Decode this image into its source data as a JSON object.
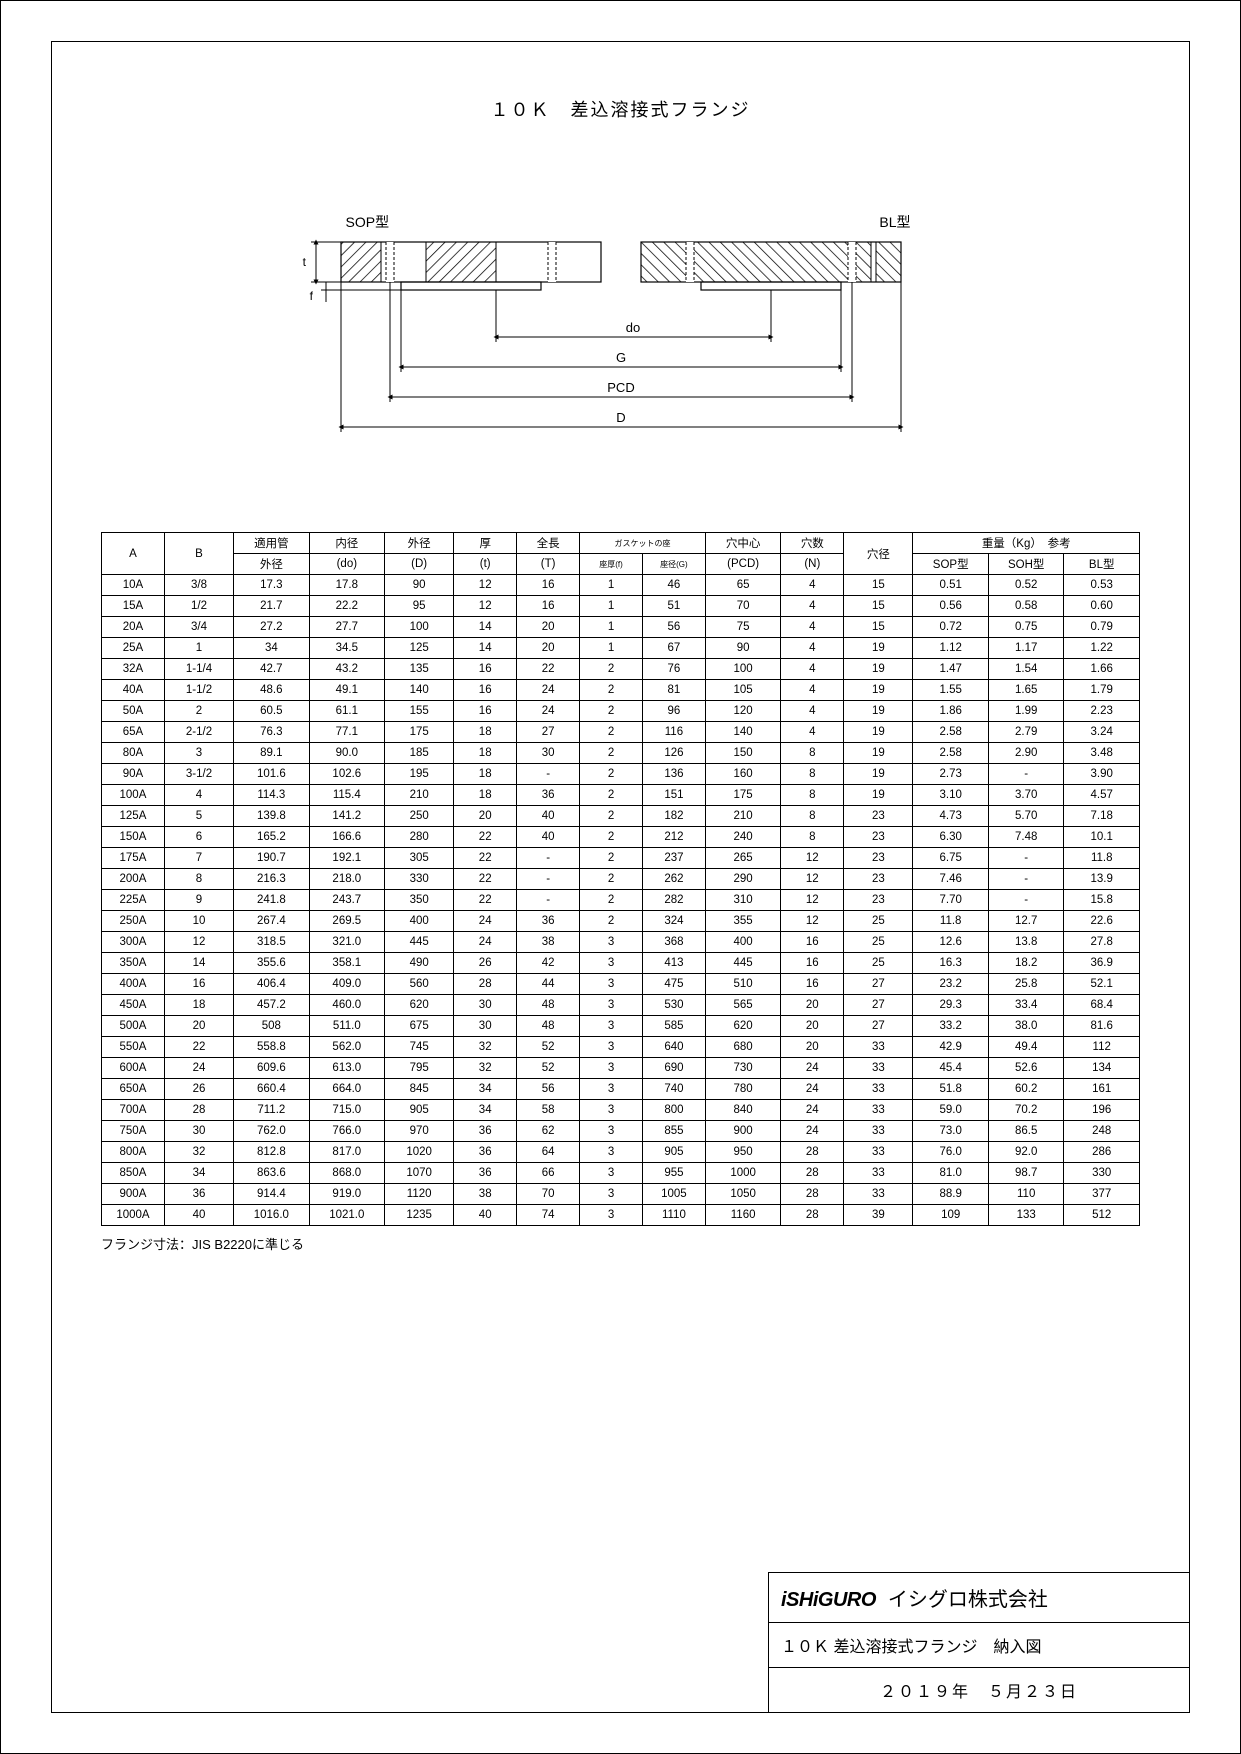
{
  "title": "１０Ｋ　差込溶接式フランジ",
  "diagram": {
    "sop_label": "SOP型",
    "bl_label": "BL型",
    "dim_t": "t",
    "dim_f": "f",
    "dim_do": "do",
    "dim_G": "G",
    "dim_PCD": "PCD",
    "dim_D": "D"
  },
  "table": {
    "headers": {
      "A": "A",
      "B": "B",
      "pipe_od": "適用管",
      "pipe_od_sub": "外径",
      "id": "内径",
      "id_sub": "(do)",
      "od": "外径",
      "od_sub": "(D)",
      "thick": "厚",
      "thick_sub": "(t)",
      "length": "全長",
      "length_sub": "(T)",
      "gasket": "ガスケットの座",
      "seat_f": "座厚(f)",
      "seat_g": "座径(G)",
      "pcd": "穴中心",
      "pcd_sub": "(PCD)",
      "holes": "穴数",
      "holes_sub": "(N)",
      "hole_d": "穴径",
      "weight": "重量（Kg）　参考",
      "sop": "SOP型",
      "soh": "SOH型",
      "bl": "BL型"
    },
    "rows": [
      [
        "10A",
        "3/8",
        "17.3",
        "17.8",
        "90",
        "12",
        "16",
        "1",
        "46",
        "65",
        "4",
        "15",
        "0.51",
        "0.52",
        "0.53"
      ],
      [
        "15A",
        "1/2",
        "21.7",
        "22.2",
        "95",
        "12",
        "16",
        "1",
        "51",
        "70",
        "4",
        "15",
        "0.56",
        "0.58",
        "0.60"
      ],
      [
        "20A",
        "3/4",
        "27.2",
        "27.7",
        "100",
        "14",
        "20",
        "1",
        "56",
        "75",
        "4",
        "15",
        "0.72",
        "0.75",
        "0.79"
      ],
      [
        "25A",
        "1",
        "34",
        "34.5",
        "125",
        "14",
        "20",
        "1",
        "67",
        "90",
        "4",
        "19",
        "1.12",
        "1.17",
        "1.22"
      ],
      [
        "32A",
        "1-1/4",
        "42.7",
        "43.2",
        "135",
        "16",
        "22",
        "2",
        "76",
        "100",
        "4",
        "19",
        "1.47",
        "1.54",
        "1.66"
      ],
      [
        "40A",
        "1-1/2",
        "48.6",
        "49.1",
        "140",
        "16",
        "24",
        "2",
        "81",
        "105",
        "4",
        "19",
        "1.55",
        "1.65",
        "1.79"
      ],
      [
        "50A",
        "2",
        "60.5",
        "61.1",
        "155",
        "16",
        "24",
        "2",
        "96",
        "120",
        "4",
        "19",
        "1.86",
        "1.99",
        "2.23"
      ],
      [
        "65A",
        "2-1/2",
        "76.3",
        "77.1",
        "175",
        "18",
        "27",
        "2",
        "116",
        "140",
        "4",
        "19",
        "2.58",
        "2.79",
        "3.24"
      ],
      [
        "80A",
        "3",
        "89.1",
        "90.0",
        "185",
        "18",
        "30",
        "2",
        "126",
        "150",
        "8",
        "19",
        "2.58",
        "2.90",
        "3.48"
      ],
      [
        "90A",
        "3-1/2",
        "101.6",
        "102.6",
        "195",
        "18",
        "-",
        "2",
        "136",
        "160",
        "8",
        "19",
        "2.73",
        "-",
        "3.90"
      ],
      [
        "100A",
        "4",
        "114.3",
        "115.4",
        "210",
        "18",
        "36",
        "2",
        "151",
        "175",
        "8",
        "19",
        "3.10",
        "3.70",
        "4.57"
      ],
      [
        "125A",
        "5",
        "139.8",
        "141.2",
        "250",
        "20",
        "40",
        "2",
        "182",
        "210",
        "8",
        "23",
        "4.73",
        "5.70",
        "7.18"
      ],
      [
        "150A",
        "6",
        "165.2",
        "166.6",
        "280",
        "22",
        "40",
        "2",
        "212",
        "240",
        "8",
        "23",
        "6.30",
        "7.48",
        "10.1"
      ],
      [
        "175A",
        "7",
        "190.7",
        "192.1",
        "305",
        "22",
        "-",
        "2",
        "237",
        "265",
        "12",
        "23",
        "6.75",
        "-",
        "11.8"
      ],
      [
        "200A",
        "8",
        "216.3",
        "218.0",
        "330",
        "22",
        "-",
        "2",
        "262",
        "290",
        "12",
        "23",
        "7.46",
        "-",
        "13.9"
      ],
      [
        "225A",
        "9",
        "241.8",
        "243.7",
        "350",
        "22",
        "-",
        "2",
        "282",
        "310",
        "12",
        "23",
        "7.70",
        "-",
        "15.8"
      ],
      [
        "250A",
        "10",
        "267.4",
        "269.5",
        "400",
        "24",
        "36",
        "2",
        "324",
        "355",
        "12",
        "25",
        "11.8",
        "12.7",
        "22.6"
      ],
      [
        "300A",
        "12",
        "318.5",
        "321.0",
        "445",
        "24",
        "38",
        "3",
        "368",
        "400",
        "16",
        "25",
        "12.6",
        "13.8",
        "27.8"
      ],
      [
        "350A",
        "14",
        "355.6",
        "358.1",
        "490",
        "26",
        "42",
        "3",
        "413",
        "445",
        "16",
        "25",
        "16.3",
        "18.2",
        "36.9"
      ],
      [
        "400A",
        "16",
        "406.4",
        "409.0",
        "560",
        "28",
        "44",
        "3",
        "475",
        "510",
        "16",
        "27",
        "23.2",
        "25.8",
        "52.1"
      ],
      [
        "450A",
        "18",
        "457.2",
        "460.0",
        "620",
        "30",
        "48",
        "3",
        "530",
        "565",
        "20",
        "27",
        "29.3",
        "33.4",
        "68.4"
      ],
      [
        "500A",
        "20",
        "508",
        "511.0",
        "675",
        "30",
        "48",
        "3",
        "585",
        "620",
        "20",
        "27",
        "33.2",
        "38.0",
        "81.6"
      ],
      [
        "550A",
        "22",
        "558.8",
        "562.0",
        "745",
        "32",
        "52",
        "3",
        "640",
        "680",
        "20",
        "33",
        "42.9",
        "49.4",
        "112"
      ],
      [
        "600A",
        "24",
        "609.6",
        "613.0",
        "795",
        "32",
        "52",
        "3",
        "690",
        "730",
        "24",
        "33",
        "45.4",
        "52.6",
        "134"
      ],
      [
        "650A",
        "26",
        "660.4",
        "664.0",
        "845",
        "34",
        "56",
        "3",
        "740",
        "780",
        "24",
        "33",
        "51.8",
        "60.2",
        "161"
      ],
      [
        "700A",
        "28",
        "711.2",
        "715.0",
        "905",
        "34",
        "58",
        "3",
        "800",
        "840",
        "24",
        "33",
        "59.0",
        "70.2",
        "196"
      ],
      [
        "750A",
        "30",
        "762.0",
        "766.0",
        "970",
        "36",
        "62",
        "3",
        "855",
        "900",
        "24",
        "33",
        "73.0",
        "86.5",
        "248"
      ],
      [
        "800A",
        "32",
        "812.8",
        "817.0",
        "1020",
        "36",
        "64",
        "3",
        "905",
        "950",
        "28",
        "33",
        "76.0",
        "92.0",
        "286"
      ],
      [
        "850A",
        "34",
        "863.6",
        "868.0",
        "1070",
        "36",
        "66",
        "3",
        "955",
        "1000",
        "28",
        "33",
        "81.0",
        "98.7",
        "330"
      ],
      [
        "900A",
        "36",
        "914.4",
        "919.0",
        "1120",
        "38",
        "70",
        "3",
        "1005",
        "1050",
        "28",
        "33",
        "88.9",
        "110",
        "377"
      ],
      [
        "1000A",
        "40",
        "1016.0",
        "1021.0",
        "1235",
        "40",
        "74",
        "3",
        "1110",
        "1160",
        "28",
        "39",
        "109",
        "133",
        "512"
      ]
    ]
  },
  "footnote": "フランジ寸法：JIS B2220に準じる",
  "title_block": {
    "logo": "iSHiGURO",
    "company": "イシグロ株式会社",
    "drawing_title": "１０Ｋ 差込溶接式フランジ　納入図",
    "date": "２０１９年　５月２３日"
  },
  "colors": {
    "line": "#000000",
    "bg": "#ffffff"
  }
}
